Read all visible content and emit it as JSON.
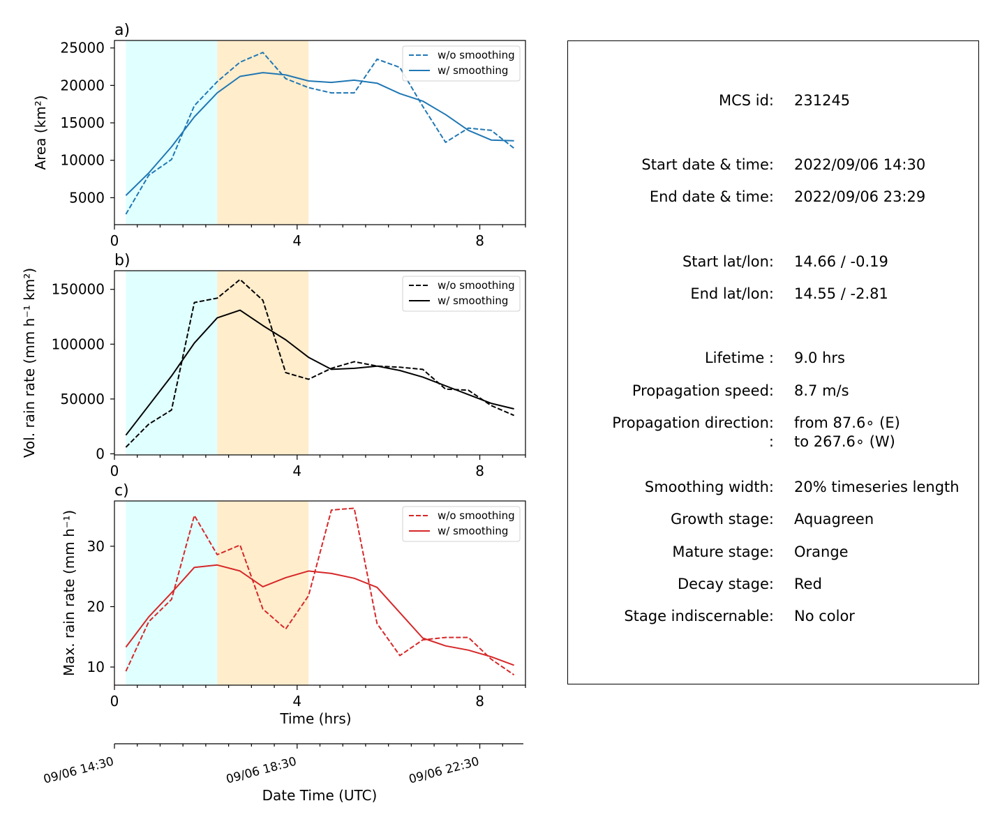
{
  "chart_data": [
    {
      "type": "line",
      "panel_label": "a)",
      "ylabel": "Area  (km²)",
      "xlim": [
        0,
        9
      ],
      "ylim": [
        1400,
        26000
      ],
      "yticks": [
        5000,
        10000,
        15000,
        20000,
        25000
      ],
      "xticks": [
        0,
        4,
        8
      ],
      "x": [
        0.25,
        0.75,
        1.25,
        1.75,
        2.25,
        2.75,
        3.25,
        3.75,
        4.25,
        4.75,
        5.25,
        5.75,
        6.25,
        6.75,
        7.25,
        7.75,
        8.25,
        8.75
      ],
      "series": [
        {
          "name": "w/o smoothing",
          "style": "dashed",
          "color": "#1f77b4",
          "values": [
            2800,
            8000,
            10100,
            17300,
            20500,
            23100,
            24400,
            20900,
            19700,
            19000,
            19000,
            23500,
            22400,
            17200,
            12400,
            14300,
            14000,
            11600
          ]
        },
        {
          "name": "w/ smoothing",
          "style": "solid",
          "color": "#1f77b4",
          "values": [
            5300,
            8300,
            11800,
            15800,
            19000,
            21200,
            21700,
            21400,
            20600,
            20400,
            20700,
            20300,
            18900,
            17900,
            16100,
            14000,
            12700,
            12600
          ]
        }
      ]
    },
    {
      "type": "line",
      "panel_label": "b)",
      "ylabel": "Vol. rain rate (mm h⁻¹ km²)",
      "xlim": [
        0,
        9
      ],
      "ylim": [
        -1000,
        167000
      ],
      "yticks": [
        0,
        50000,
        100000,
        150000
      ],
      "xticks": [
        0,
        4,
        8
      ],
      "x": [
        0.25,
        0.75,
        1.25,
        1.75,
        2.25,
        2.75,
        3.25,
        3.75,
        4.25,
        4.75,
        5.25,
        5.75,
        6.25,
        6.75,
        7.25,
        7.75,
        8.25,
        8.75
      ],
      "series": [
        {
          "name": "w/o smoothing",
          "style": "dashed",
          "color": "#000000",
          "values": [
            6000,
            27000,
            40000,
            138000,
            142000,
            159000,
            140000,
            74000,
            68000,
            78000,
            84000,
            80000,
            79000,
            77000,
            59000,
            58000,
            44000,
            35000
          ]
        },
        {
          "name": "w/ smoothing",
          "style": "solid",
          "color": "#000000",
          "values": [
            17000,
            44000,
            71000,
            101000,
            124000,
            131000,
            117000,
            104000,
            88000,
            77000,
            78000,
            80000,
            76000,
            70000,
            62000,
            54000,
            46000,
            41000
          ]
        }
      ]
    },
    {
      "type": "line",
      "panel_label": "c)",
      "ylabel": "Max. rain rate  (mm h⁻¹)",
      "xlabel": "Time (hrs)",
      "xlim": [
        0,
        9
      ],
      "ylim": [
        7.0,
        37.5
      ],
      "yticks": [
        10,
        20,
        30
      ],
      "xticks": [
        0,
        4,
        8
      ],
      "x": [
        0.25,
        0.75,
        1.25,
        1.75,
        2.25,
        2.75,
        3.25,
        3.75,
        4.25,
        4.75,
        5.25,
        5.75,
        6.25,
        6.75,
        7.25,
        7.75,
        8.25,
        8.75
      ],
      "series": [
        {
          "name": "w/o smoothing",
          "style": "dashed",
          "color": "#d62728",
          "values": [
            9.3,
            17.5,
            21.2,
            35.1,
            28.6,
            30.2,
            19.6,
            16.3,
            21.8,
            36.0,
            36.3,
            17.2,
            11.9,
            14.5,
            14.9,
            14.9,
            11.3,
            8.7
          ]
        },
        {
          "name": "w/ smoothing",
          "style": "solid",
          "color": "#d62728",
          "values": [
            13.3,
            18.3,
            22.3,
            26.5,
            26.9,
            25.9,
            23.3,
            24.8,
            25.9,
            25.5,
            24.7,
            23.2,
            null,
            14.8,
            13.5,
            12.8,
            11.7,
            10.3
          ]
        }
      ]
    }
  ],
  "stage_shading": [
    {
      "stage": "growth",
      "from": 0.25,
      "to": 2.25,
      "color": "#e0ffff"
    },
    {
      "stage": "mature",
      "from": 2.25,
      "to": 4.25,
      "color": "#ffedcc"
    }
  ],
  "datetime_axis": {
    "label": "Date Time (UTC)",
    "ticks": [
      {
        "t": 0,
        "label": "09/06 14:30"
      },
      {
        "t": 4,
        "label": "09/06 18:30"
      },
      {
        "t": 8,
        "label": "09/06 22:30"
      }
    ]
  },
  "info": [
    {
      "label": "MCS id:",
      "value": "231245"
    },
    {
      "label": "Start date & time:",
      "value": "2022/09/06 14:30"
    },
    {
      "label": "End date & time:",
      "value": "2022/09/06 23:29"
    },
    {
      "label": "Start lat/lon:",
      "value": "14.66 / -0.19"
    },
    {
      "label": "End lat/lon:",
      "value": "14.55 / -2.81"
    },
    {
      "label": "Lifetime :",
      "value": "9.0 hrs"
    },
    {
      "label": "Propagation speed:",
      "value": "8.7 m/s"
    },
    {
      "label": "Propagation direction:",
      "value": "from  87.6∘ (E)"
    },
    {
      "label": ":",
      "value": "to   267.6∘ (W)"
    },
    {
      "label": "Smoothing width:",
      "value": "20% timeseries length"
    },
    {
      "label": "Growth stage:",
      "value": "Aquagreen"
    },
    {
      "label": "Mature stage:",
      "value": "Orange"
    },
    {
      "label": "Decay stage:",
      "value": "Red"
    },
    {
      "label": "Stage indiscernable:",
      "value": "No color"
    }
  ]
}
